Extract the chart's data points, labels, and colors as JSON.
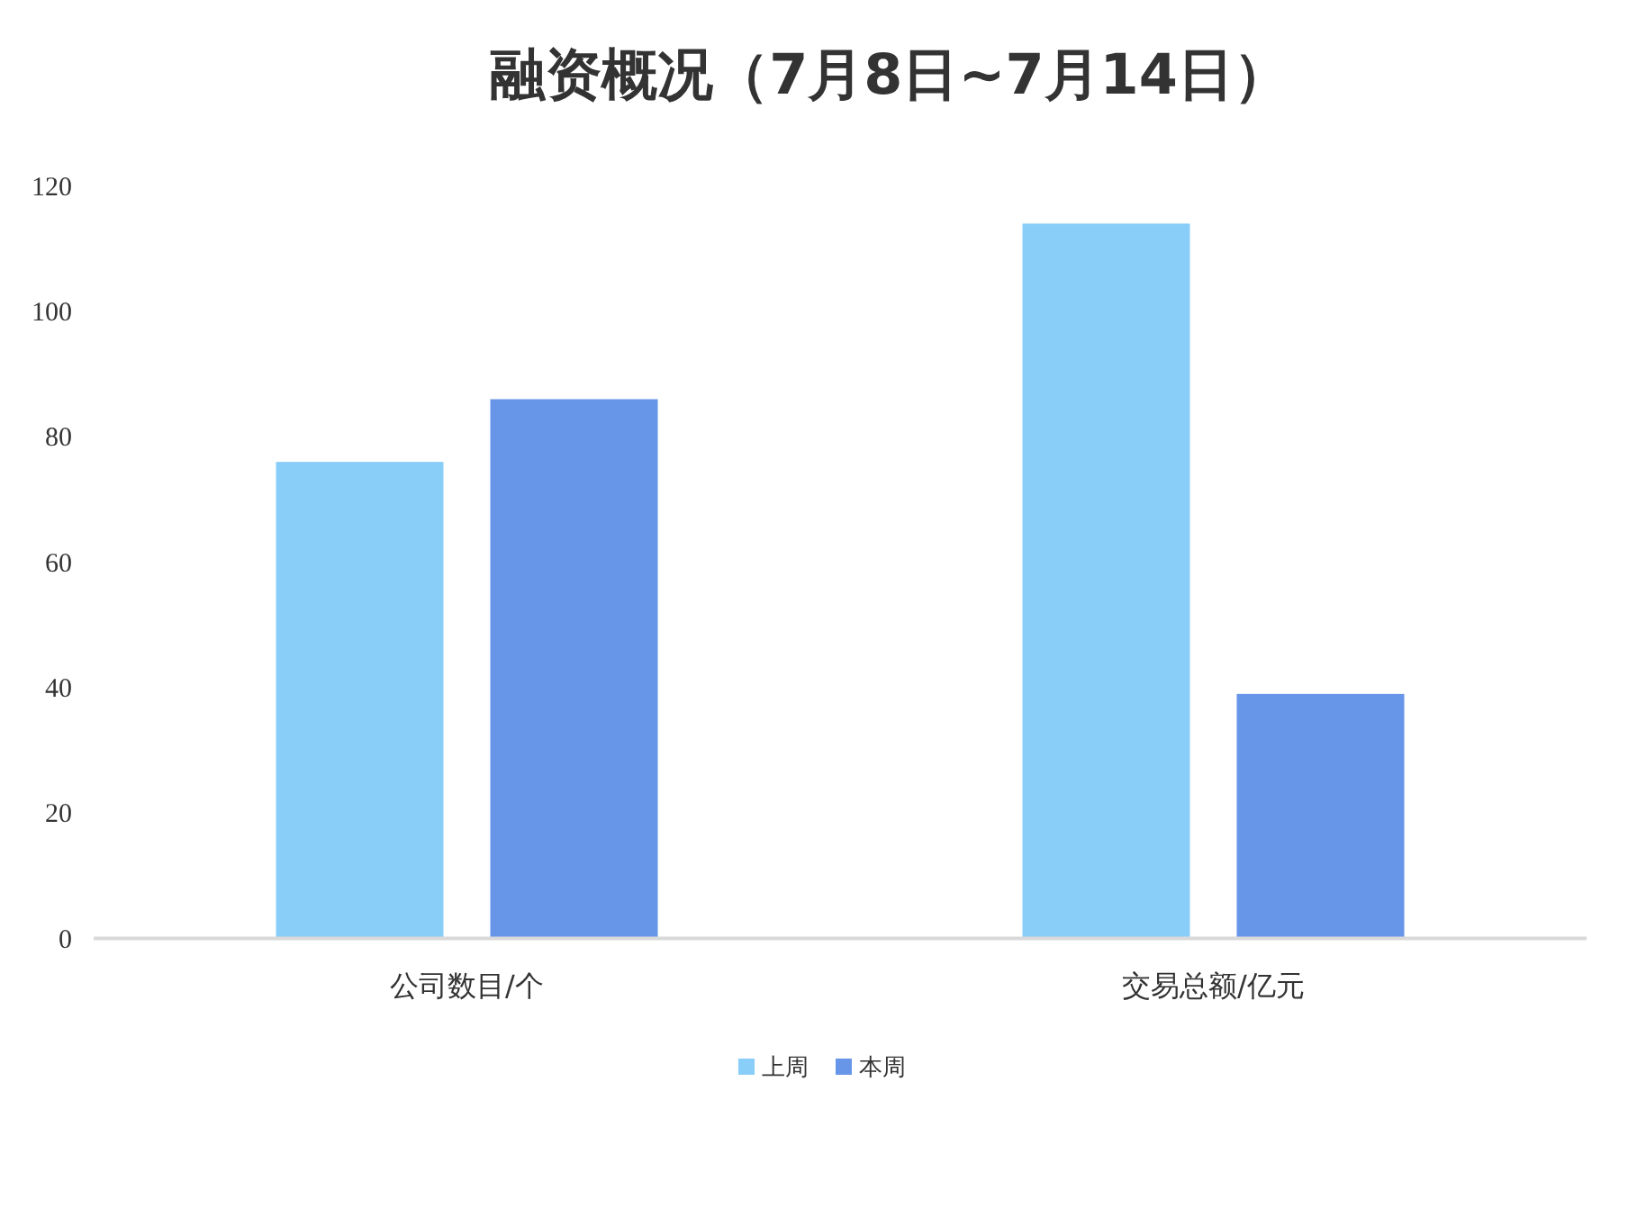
{
  "chart_data": {
    "type": "bar",
    "title": "融资概况（7月8日~7月14日）",
    "categories": [
      "公司数目/个",
      "交易总额/亿元"
    ],
    "series": [
      {
        "name": "上周",
        "color": "#89cdf9",
        "values": [
          76,
          114
        ]
      },
      {
        "name": "本周",
        "color": "#6796e9",
        "values": [
          86,
          39
        ]
      }
    ],
    "ylim": [
      0,
      120
    ],
    "yticks": [
      0,
      20,
      40,
      60,
      80,
      100,
      120
    ],
    "grid": false,
    "legend": "bottom"
  }
}
